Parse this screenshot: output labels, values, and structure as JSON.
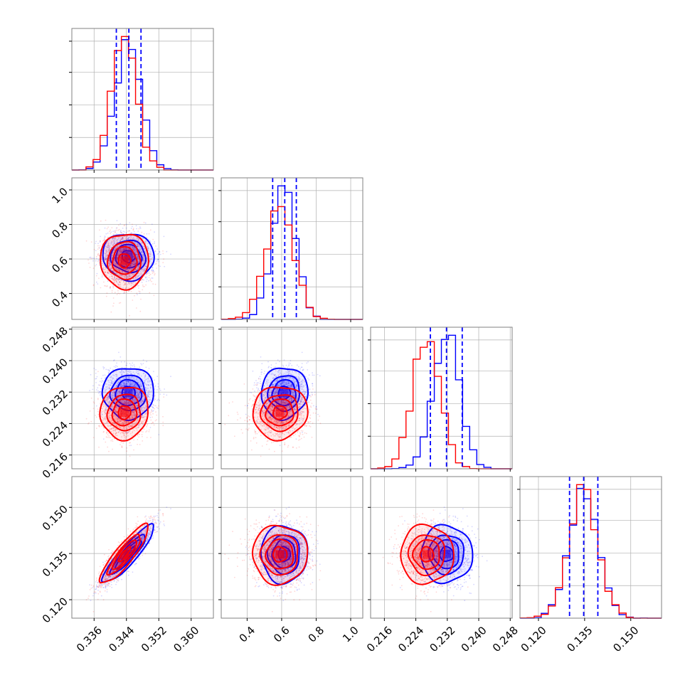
{
  "chart_data": {
    "type": "corner",
    "title": "",
    "grid": true,
    "colors": {
      "series_a": "#0000ff",
      "series_b": "#ff0000",
      "quantiles": "#0000ff",
      "frame": "#808080",
      "grid": "#b0b0b0"
    },
    "series": [
      {
        "color": "#0000ff",
        "means": [
          0.3445,
          0.615,
          0.2318,
          0.1348
        ],
        "sds": [
          0.0032,
          0.068,
          0.0033,
          0.0047
        ],
        "correlations": [
          [
            0,
            1,
            -0.05
          ],
          [
            0,
            2,
            0.0
          ],
          [
            0,
            3,
            0.9
          ],
          [
            1,
            2,
            0.05
          ],
          [
            1,
            3,
            0.0
          ],
          [
            2,
            3,
            0.0
          ]
        ]
      },
      {
        "color": "#ff0000",
        "means": [
          0.3435,
          0.59,
          0.2268,
          0.1347
        ],
        "sds": [
          0.003,
          0.08,
          0.0034,
          0.0048
        ],
        "correlations": [
          [
            0,
            1,
            0.0
          ],
          [
            0,
            2,
            0.05
          ],
          [
            0,
            3,
            0.88
          ],
          [
            1,
            2,
            0.05
          ],
          [
            1,
            3,
            0.0
          ],
          [
            2,
            3,
            0.0
          ]
        ]
      }
    ],
    "quantile_lines": [
      [
        0.3415,
        0.3446,
        0.3476
      ],
      [
        0.548,
        0.618,
        0.685
      ],
      [
        0.2277,
        0.2318,
        0.2358
      ],
      [
        0.1301,
        0.1347,
        0.1393
      ]
    ],
    "ranges": [
      [
        0.3305,
        0.3655
      ],
      [
        0.25,
        1.07
      ],
      [
        0.2125,
        0.2485
      ],
      [
        0.114,
        0.16
      ]
    ],
    "ticks": [
      [
        0.336,
        0.344,
        0.352,
        0.36
      ],
      [
        0.4,
        0.6,
        0.8,
        1.0
      ],
      [
        0.216,
        0.224,
        0.232,
        0.24,
        0.248
      ],
      [
        0.12,
        0.135,
        0.15
      ]
    ],
    "tick_labels": [
      [
        "0.336",
        "0.344",
        "0.352",
        "0.360"
      ],
      [
        "0.4",
        "0.6",
        "0.8",
        "1.0"
      ],
      [
        "0.216",
        "0.224",
        "0.232",
        "0.240",
        "0.248"
      ],
      [
        "0.120",
        "0.135",
        "0.150"
      ]
    ],
    "histogram_bins": 20
  }
}
